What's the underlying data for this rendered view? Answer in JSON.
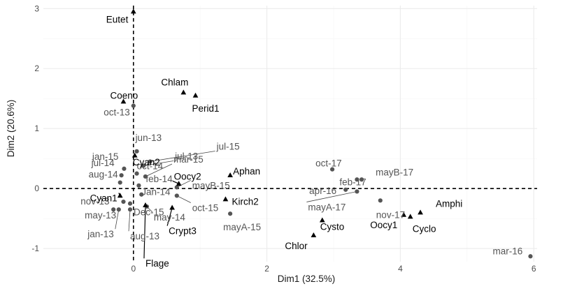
{
  "chart_data": {
    "type": "scatter",
    "title": "",
    "xlabel": "Dim1 (32.5%)",
    "ylabel": "Dim2 (20.6%)",
    "xlim": [
      -1.35,
      6.05
    ],
    "ylim": [
      -1.22,
      3.05
    ],
    "x_ticks": [
      0,
      2,
      4,
      6
    ],
    "y_ticks": [
      -1,
      0,
      1,
      2,
      3
    ],
    "grid": true,
    "legend": "none",
    "reference_lines": {
      "x": 0,
      "y": 0,
      "style": "dashed"
    },
    "colors": {
      "sites": "#555555",
      "species": "#000000"
    },
    "series": [
      {
        "marker": "circle",
        "points": [
          {
            "label": "oct-13",
            "x": 0.0,
            "y": 1.38
          },
          {
            "label": "jun-13",
            "x": 0.05,
            "y": 0.62
          },
          {
            "label": "jan-15",
            "x": -0.14,
            "y": 0.33
          },
          {
            "label": "jul-13",
            "x": 0.15,
            "y": 0.38
          },
          {
            "label": "jul-15",
            "x": 0.25,
            "y": 0.45
          },
          {
            "label": "jul-14",
            "x": -0.18,
            "y": 0.22
          },
          {
            "label": "oct-14",
            "x": 0.05,
            "y": 0.25
          },
          {
            "label": "mar-15",
            "x": 0.18,
            "y": 0.2
          },
          {
            "label": "aug-14",
            "x": -0.2,
            "y": 0.1
          },
          {
            "label": "feb-14",
            "x": 0.08,
            "y": 0.05
          },
          {
            "label": "mayB-15",
            "x": 0.65,
            "y": 0.02
          },
          {
            "label": "Jan-14",
            "x": 0.12,
            "y": -0.1
          },
          {
            "label": "nov-13",
            "x": -0.15,
            "y": -0.22
          },
          {
            "label": "Dec-15",
            "x": -0.05,
            "y": -0.25
          },
          {
            "label": "oct-15",
            "x": 0.65,
            "y": -0.12
          },
          {
            "label": "may-13",
            "x": -0.3,
            "y": -0.35
          },
          {
            "label": "jan-13",
            "x": -0.22,
            "y": -0.35
          },
          {
            "label": "aug-13",
            "x": -0.05,
            "y": -0.35
          },
          {
            "label": "may-14",
            "x": 0.2,
            "y": -0.3
          },
          {
            "label": "mayA-15",
            "x": 1.45,
            "y": -0.42
          },
          {
            "label": "oct-17",
            "x": 2.98,
            "y": 0.32
          },
          {
            "label": "feb-17",
            "x": 3.35,
            "y": 0.15
          },
          {
            "label": "mayB-17",
            "x": 3.42,
            "y": 0.15
          },
          {
            "label": "apr-16",
            "x": 3.18,
            "y": -0.02
          },
          {
            "label": "mayA-17",
            "x": 3.35,
            "y": -0.05
          },
          {
            "label": "nov-17",
            "x": 3.7,
            "y": -0.2
          },
          {
            "label": "mar-16",
            "x": 5.95,
            "y": -1.13
          }
        ]
      },
      {
        "marker": "triangle",
        "points": [
          {
            "label": "Eutet",
            "x": 0.0,
            "y": 2.95
          },
          {
            "label": "Chlam",
            "x": 0.75,
            "y": 1.6
          },
          {
            "label": "Perid1",
            "x": 0.93,
            "y": 1.55
          },
          {
            "label": "Coeno",
            "x": -0.15,
            "y": 1.45
          },
          {
            "label": "Cyan2",
            "x": 0.02,
            "y": 0.55
          },
          {
            "label": "Aphan",
            "x": 1.45,
            "y": 0.22
          },
          {
            "label": "Oocy2",
            "x": 0.68,
            "y": 0.08
          },
          {
            "label": "Cyan1",
            "x": -0.2,
            "y": -0.12
          },
          {
            "label": "Kirch2",
            "x": 1.38,
            "y": -0.18
          },
          {
            "label": "Crypt3",
            "x": 0.58,
            "y": -0.32
          },
          {
            "label": "Flage",
            "x": 0.18,
            "y": -0.28
          },
          {
            "label": "Cysto",
            "x": 2.83,
            "y": -0.53
          },
          {
            "label": "Chlor",
            "x": 2.7,
            "y": -0.78
          },
          {
            "label": "Amphi",
            "x": 4.3,
            "y": -0.4
          },
          {
            "label": "Oocy1",
            "x": 4.05,
            "y": -0.44
          },
          {
            "label": "Cyclo",
            "x": 4.15,
            "y": -0.47
          }
        ]
      }
    ]
  }
}
